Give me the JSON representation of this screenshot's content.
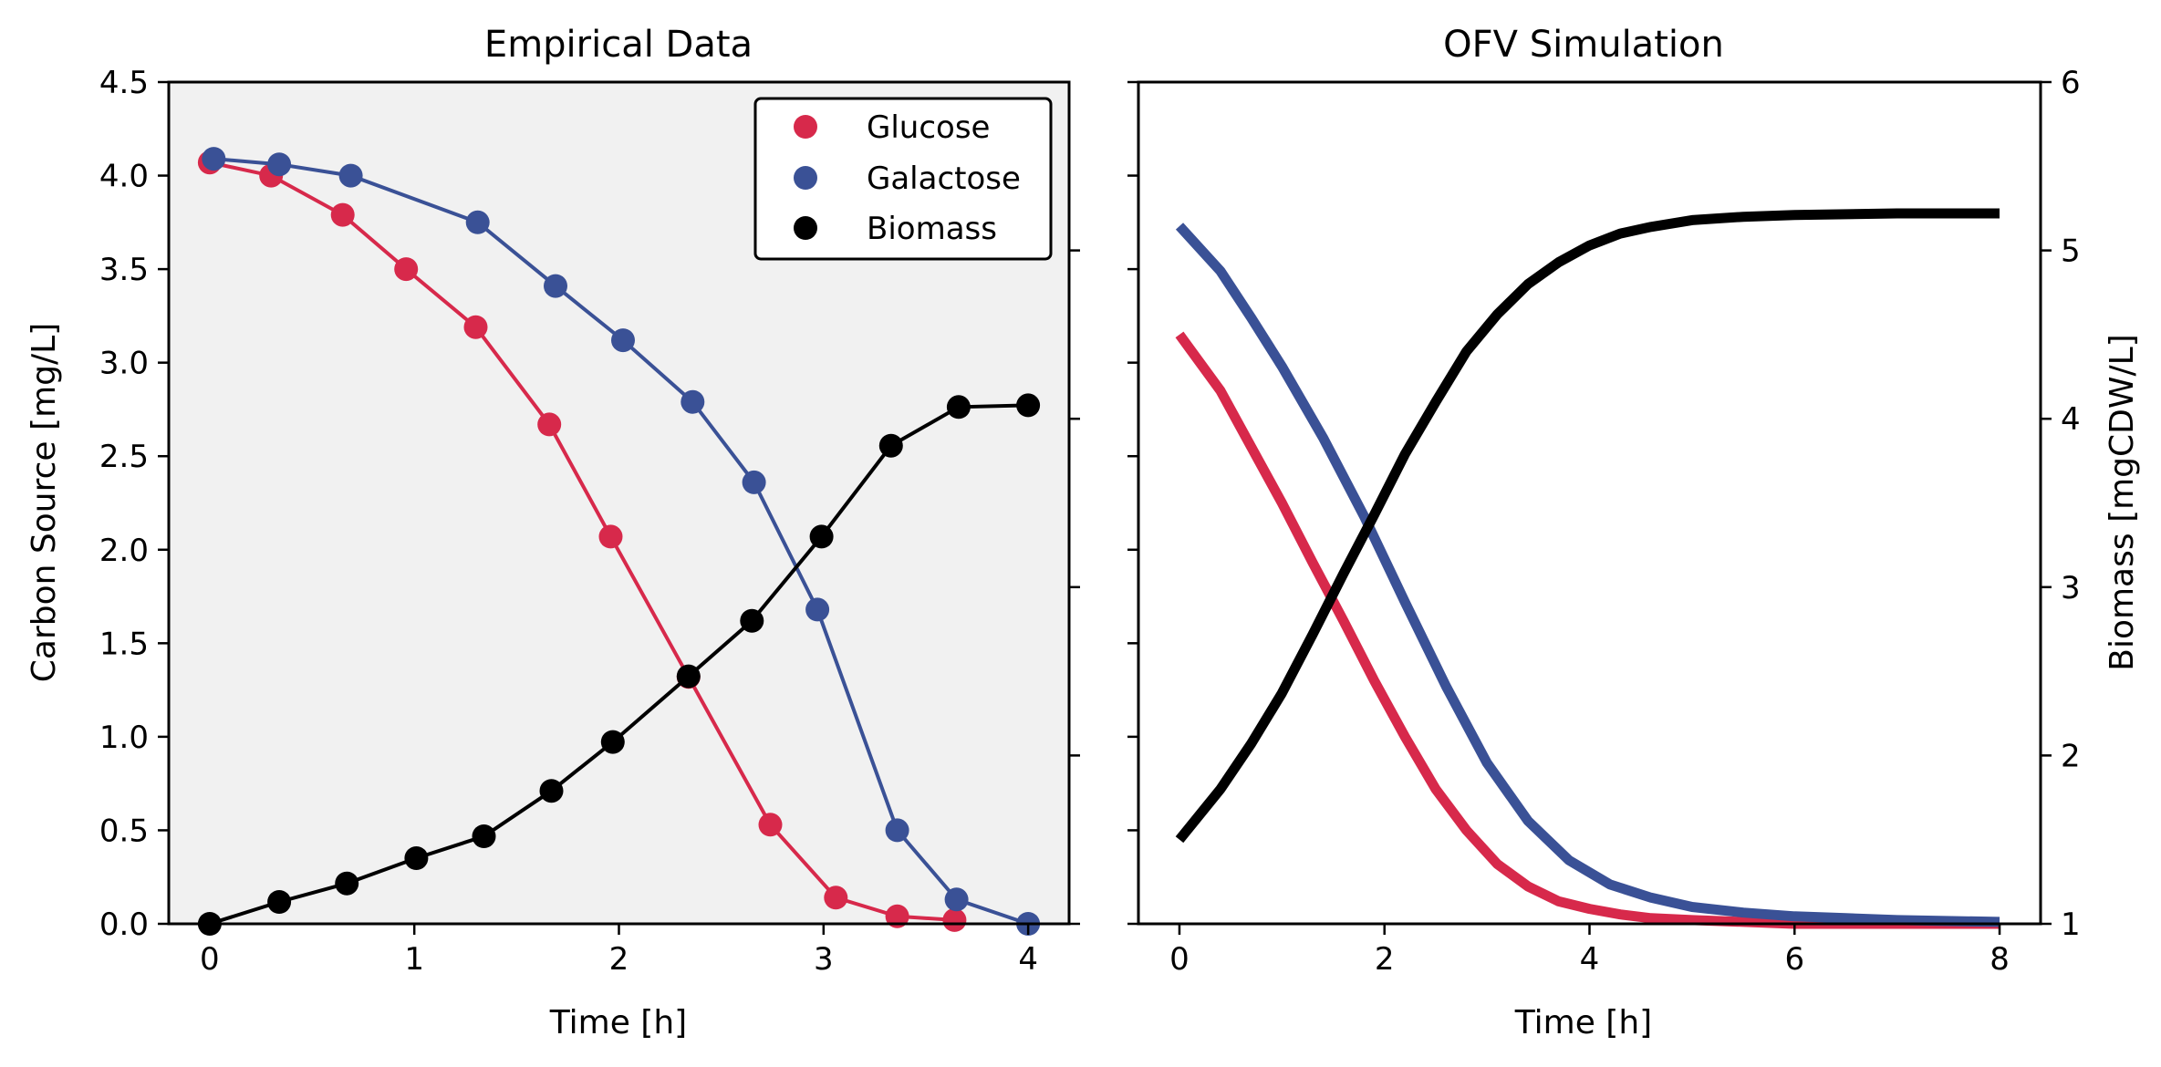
{
  "colors": {
    "glucose": "#d7294b",
    "galactose": "#3a5196",
    "biomass": "#000000",
    "left_panel_bg": "#f1f1f1"
  },
  "chart_data": [
    {
      "type": "line",
      "title": "Empirical Data",
      "xlabel": "Time [h]",
      "ylabel": "Carbon Source [mg/L]",
      "xlim": [
        -0.2,
        4.2
      ],
      "ylim": [
        0,
        4.5
      ],
      "xticks": [
        "0",
        "1",
        "2",
        "3",
        "4"
      ],
      "yticks": [
        "0.0",
        "0.5",
        "1.0",
        "1.5",
        "2.0",
        "2.5",
        "3.0",
        "3.5",
        "4.0",
        "4.5"
      ],
      "secondary_y_ticks_unlabeled": [
        1,
        2,
        3,
        4,
        5
      ],
      "grid": false,
      "markers": true,
      "legend_position": "top-right",
      "legend": [
        "Glucose",
        "Galactose",
        "Biomass"
      ],
      "series": [
        {
          "name": "Glucose",
          "axis": "left",
          "x": [
            0,
            0.3,
            0.65,
            0.96,
            1.3,
            1.66,
            1.96,
            2.34,
            2.74,
            3.06,
            3.36,
            3.64
          ],
          "y": [
            4.07,
            4.0,
            3.79,
            3.5,
            3.19,
            2.67,
            2.07,
            1.32,
            0.53,
            0.14,
            0.04,
            0.02
          ]
        },
        {
          "name": "Galactose",
          "axis": "left",
          "x": [
            0.02,
            0.34,
            0.69,
            1.31,
            1.69,
            2.02,
            2.36,
            2.66,
            2.97,
            3.36,
            3.65,
            4.0
          ],
          "y": [
            4.09,
            4.06,
            4.0,
            3.75,
            3.41,
            3.12,
            2.79,
            2.36,
            1.68,
            0.5,
            0.13,
            0.0
          ]
        },
        {
          "name": "Biomass",
          "axis": "right",
          "ylim": [
            1,
            6
          ],
          "x": [
            0,
            0.34,
            0.67,
            1.01,
            1.34,
            1.67,
            1.97,
            2.34,
            2.65,
            2.99,
            3.33,
            3.66,
            4.0
          ],
          "y": [
            1.0,
            1.13,
            1.24,
            1.39,
            1.52,
            1.79,
            2.08,
            2.47,
            2.8,
            3.3,
            3.84,
            4.07,
            4.08
          ]
        }
      ]
    },
    {
      "type": "line",
      "title": "OFV Simulation",
      "xlabel": "Time [h]",
      "ylabel_right": "Biomass [mgCDW/L]",
      "xlim": [
        -0.4,
        8.4
      ],
      "ylim_left": [
        0,
        4.5
      ],
      "ylim_right": [
        1,
        6
      ],
      "xticks": [
        "0",
        "2",
        "4",
        "6",
        "8"
      ],
      "yticks_right": [
        "1",
        "2",
        "3",
        "4",
        "5",
        "6"
      ],
      "grid": false,
      "markers": false,
      "series": [
        {
          "name": "Glucose",
          "axis": "left",
          "x": [
            0,
            0.4,
            0.7,
            1.0,
            1.3,
            1.6,
            1.9,
            2.2,
            2.5,
            2.8,
            3.1,
            3.4,
            3.7,
            4.0,
            4.3,
            4.6,
            5.0,
            5.5,
            6.0,
            7.0,
            8.0
          ],
          "y": [
            3.15,
            2.85,
            2.55,
            2.25,
            1.93,
            1.62,
            1.3,
            1.0,
            0.72,
            0.5,
            0.32,
            0.2,
            0.12,
            0.08,
            0.05,
            0.03,
            0.02,
            0.01,
            0.0,
            0.0,
            0.0
          ]
        },
        {
          "name": "Galactose",
          "axis": "left",
          "x": [
            0,
            0.4,
            0.7,
            1.0,
            1.4,
            1.8,
            2.2,
            2.6,
            3.0,
            3.4,
            3.8,
            4.2,
            4.6,
            5.0,
            5.5,
            6.0,
            6.5,
            7.0,
            8.0
          ],
          "y": [
            3.73,
            3.49,
            3.24,
            2.98,
            2.6,
            2.18,
            1.72,
            1.27,
            0.86,
            0.55,
            0.34,
            0.21,
            0.14,
            0.09,
            0.06,
            0.04,
            0.03,
            0.02,
            0.01
          ]
        },
        {
          "name": "Biomass",
          "axis": "right",
          "x": [
            0,
            0.4,
            0.7,
            1.0,
            1.3,
            1.6,
            1.9,
            2.2,
            2.5,
            2.8,
            3.1,
            3.4,
            3.7,
            4.0,
            4.3,
            4.6,
            5.0,
            5.5,
            6.0,
            7.0,
            8.0
          ],
          "y": [
            1.5,
            1.8,
            2.07,
            2.37,
            2.72,
            3.08,
            3.43,
            3.79,
            4.1,
            4.4,
            4.62,
            4.8,
            4.93,
            5.03,
            5.1,
            5.14,
            5.18,
            5.2,
            5.21,
            5.22,
            5.22
          ]
        }
      ]
    }
  ]
}
